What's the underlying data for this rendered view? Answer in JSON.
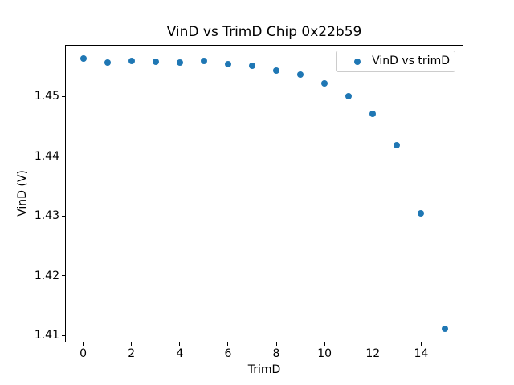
{
  "chart_data": {
    "type": "scatter",
    "title": "VinD vs TrimD Chip 0x22b59",
    "xlabel": "TrimD",
    "ylabel": "VinD (V)",
    "legend": {
      "label": "VinD vs trimD",
      "position": "upper right"
    },
    "series": [
      {
        "name": "VinD vs trimD",
        "x": [
          0,
          1,
          2,
          3,
          4,
          5,
          6,
          7,
          8,
          9,
          10,
          11,
          12,
          13,
          14,
          15
        ],
        "y": [
          1.4563,
          1.4557,
          1.4559,
          1.4558,
          1.4556,
          1.4559,
          1.4554,
          1.4551,
          1.4543,
          1.4536,
          1.4521,
          1.45,
          1.4471,
          1.4418,
          1.4304,
          1.4111
        ]
      }
    ],
    "xlim": [
      -0.75,
      15.75
    ],
    "ylim": [
      1.4088,
      1.4586
    ],
    "xticks": [
      0,
      2,
      4,
      6,
      8,
      10,
      12,
      14
    ],
    "yticks": [
      "1.41",
      "1.42",
      "1.43",
      "1.44",
      "1.45"
    ],
    "grid": false,
    "marker_color": "#1f77b4",
    "spine_color": "#000000",
    "background_color": "#ffffff"
  }
}
